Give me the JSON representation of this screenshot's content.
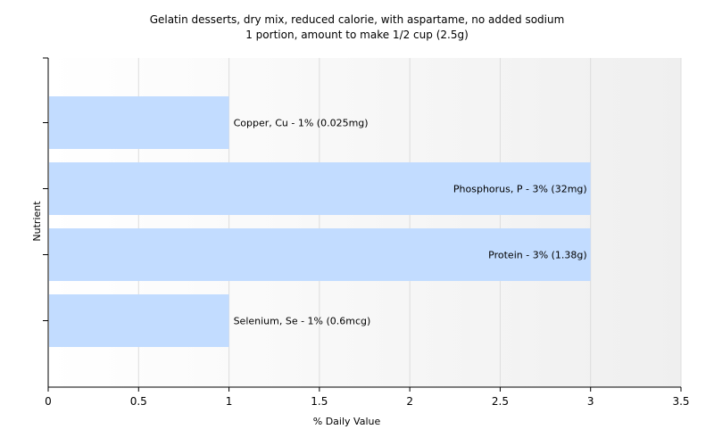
{
  "chart_data": {
    "type": "bar",
    "orientation": "horizontal",
    "title": "Gelatin desserts, dry mix, reduced calorie, with aspartame, no added sodium",
    "subtitle": "1 portion, amount to make 1/2 cup (2.5g)",
    "xlabel": "% Daily Value",
    "ylabel": "Nutrient",
    "xlim": [
      0,
      3.5
    ],
    "xticks": [
      "0",
      "0.5",
      "1",
      "1.5",
      "2",
      "2.5",
      "3",
      "3.5"
    ],
    "grid": "vertical",
    "categories": [
      "Copper, Cu",
      "Phosphorus, P",
      "Protein",
      "Selenium, Se"
    ],
    "values": [
      1,
      3,
      3,
      1
    ],
    "labels": [
      "Copper, Cu - 1% (0.025mg)",
      "Phosphorus, P - 3% (32mg)",
      "Protein - 3% (1.38g)",
      "Selenium, Se - 1% (0.6mcg)"
    ]
  },
  "colors": {
    "bar": "#c2dcff",
    "background_gradient_end": "#efefef",
    "grid": "#dddddd",
    "axis": "#000000"
  }
}
